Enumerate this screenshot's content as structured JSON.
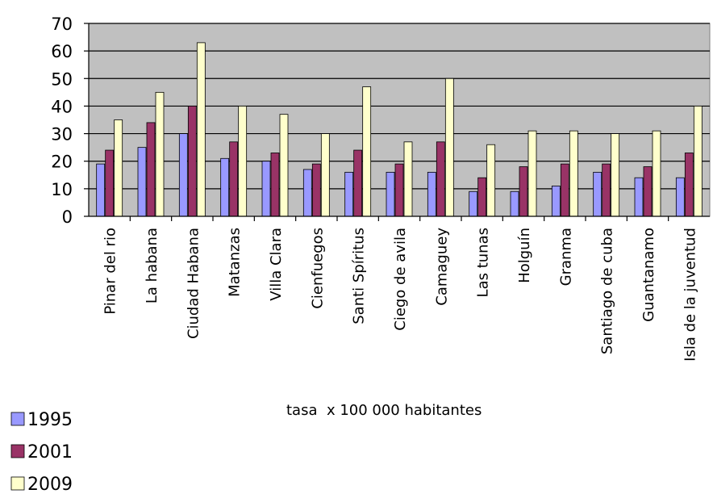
{
  "chart_data": {
    "type": "bar",
    "title": "",
    "xlabel": "tasa  x 100 000 habitantes",
    "ylabel": "",
    "ylim": [
      0,
      70
    ],
    "yticks": [
      0,
      10,
      20,
      30,
      40,
      50,
      60,
      70
    ],
    "grid": true,
    "legend_position": "bottom-left",
    "categories": [
      "Pinar del rio",
      "La habana",
      "Ciudad Habana",
      "Matanzas",
      "Villa Clara",
      "Cienfuegos",
      "Santi Spíritus",
      "Ciego de avila",
      "Camaguey",
      "Las tunas",
      "Holguín",
      "Granma",
      "Santiago de cuba",
      "Guantanamo",
      "Isla de la juventud"
    ],
    "series": [
      {
        "name": "1995",
        "color": "#9999ff",
        "values": [
          19,
          25,
          30,
          21,
          20,
          17,
          16,
          16,
          16,
          9,
          9,
          11,
          16,
          14,
          14
        ]
      },
      {
        "name": "2001",
        "color": "#993366",
        "values": [
          24,
          34,
          40,
          27,
          23,
          19,
          24,
          19,
          27,
          14,
          18,
          19,
          19,
          18,
          23
        ]
      },
      {
        "name": "2009",
        "color": "#ffffcc",
        "values": [
          35,
          45,
          63,
          40,
          37,
          30,
          47,
          27,
          50,
          26,
          31,
          31,
          30,
          31,
          40
        ]
      }
    ],
    "plot_background": "#c0c0c0"
  }
}
